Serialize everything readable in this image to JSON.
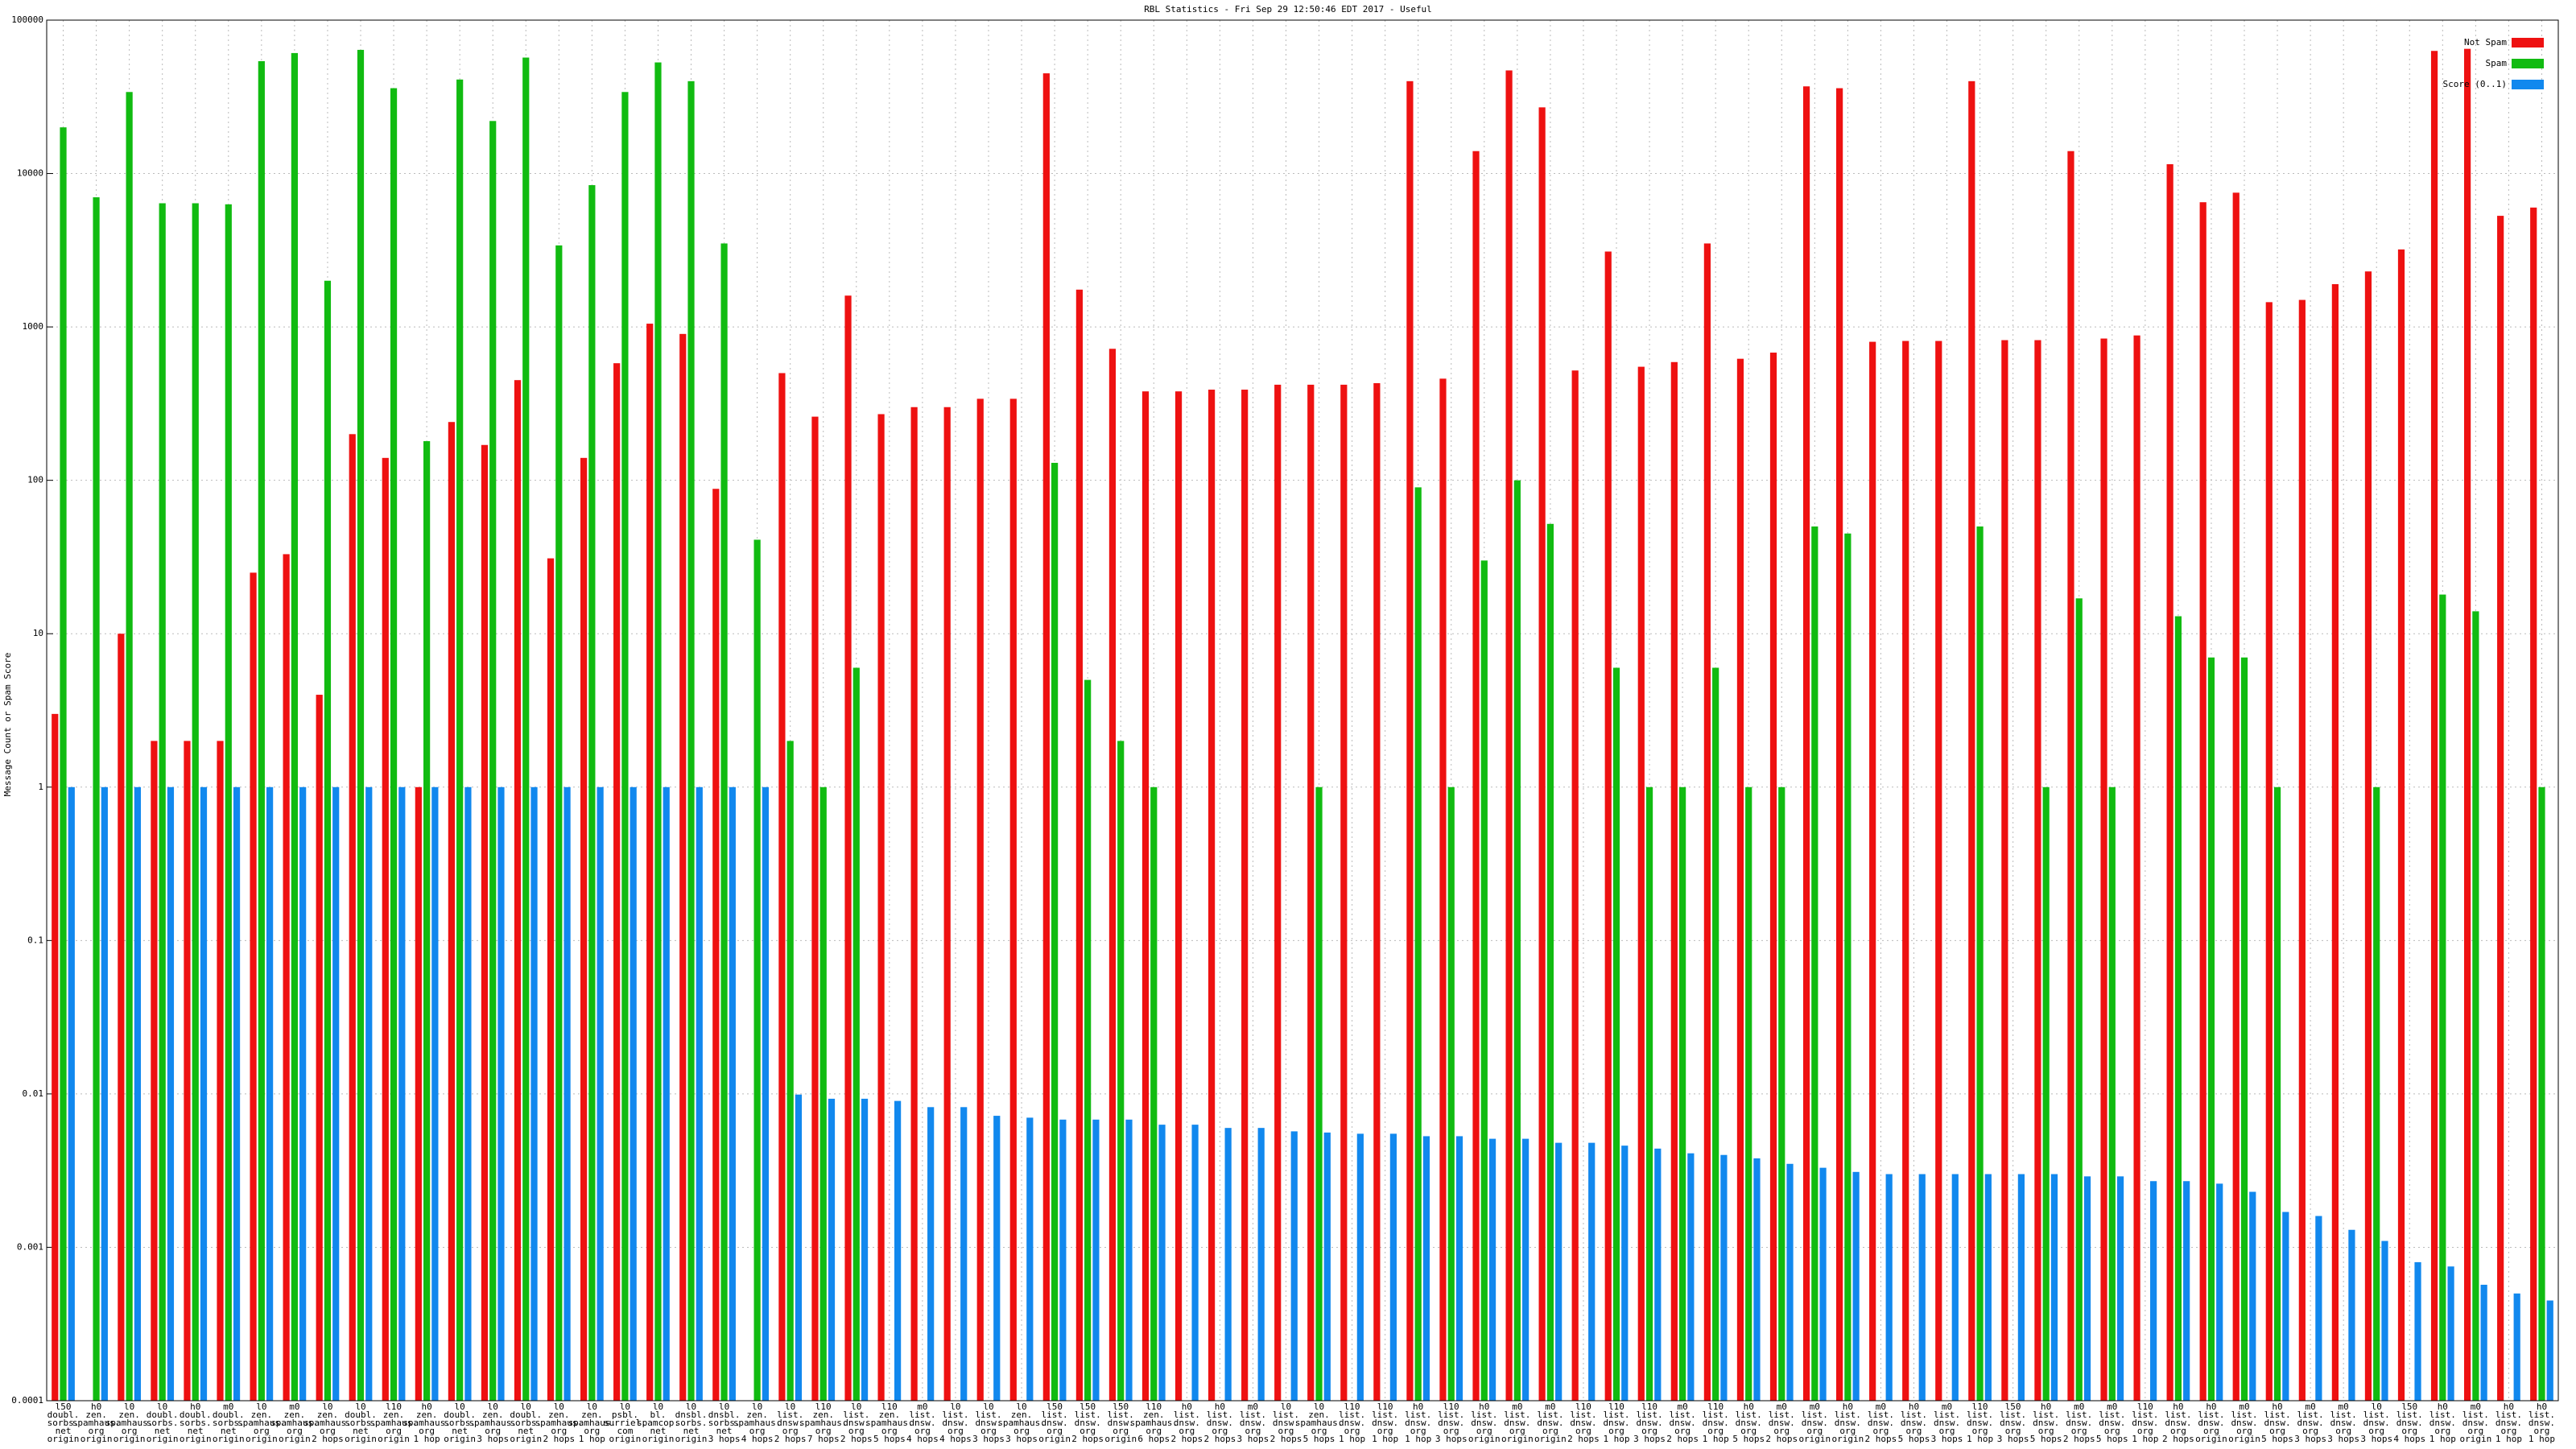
{
  "chart_data": {
    "type": "bar",
    "title": "RBL Statistics - Fri Sep 29 12:50:46 EDT 2017 - Useful",
    "y_label": "Message Count or Spam Score",
    "log_scale": true,
    "grid": true,
    "legend": "top-right",
    "ylim": [
      0.0001,
      100000
    ],
    "yticks": [
      0.0001,
      0.001,
      0.01,
      0.1,
      1,
      10,
      100,
      1000,
      10000,
      100000
    ],
    "categories": [
      [
        "l50",
        "doubl.",
        "sorbs.",
        "net",
        "origin"
      ],
      [
        "h0",
        "zen.",
        "spamhaus.",
        "org",
        "origin"
      ],
      [
        "l0",
        "zen.",
        "spamhaus.",
        "org",
        "origin"
      ],
      [
        "l0",
        "doubl.",
        "sorbs.",
        "net",
        "origin"
      ],
      [
        "h0",
        "doubl.",
        "sorbs.",
        "net",
        "origin"
      ],
      [
        "m0",
        "doubl.",
        "sorbs.",
        "net",
        "origin"
      ],
      [
        "l0",
        "zen.",
        "spamhaus.",
        "org",
        "origin"
      ],
      [
        "m0",
        "zen.",
        "spamhaus.",
        "org",
        "origin"
      ],
      [
        "l0",
        "zen.",
        "spamhaus.",
        "org",
        "2 hops"
      ],
      [
        "l0",
        "doubl.",
        "sorbs.",
        "net",
        "origin"
      ],
      [
        "l10",
        "zen.",
        "spamhaus.",
        "org",
        "origin"
      ],
      [
        "h0",
        "zen.",
        "spamhaus.",
        "org",
        "1 hop"
      ],
      [
        "l0",
        "doubl.",
        "sorbs.",
        "net",
        "origin"
      ],
      [
        "l0",
        "zen.",
        "spamhaus.",
        "org",
        "3 hops"
      ],
      [
        "l0",
        "doubl.",
        "sorbs.",
        "net",
        "origin"
      ],
      [
        "l0",
        "zen.",
        "spamhaus.",
        "org",
        "2 hops"
      ],
      [
        "l0",
        "zen.",
        "spamhaus.",
        "org",
        "1 hop"
      ],
      [
        "l0",
        "psbl.",
        "surriel.",
        "com",
        "origin"
      ],
      [
        "l0",
        "bl.",
        "spamcop.",
        "net",
        "origin"
      ],
      [
        "l0",
        "dnsbl.",
        "sorbs.",
        "net",
        "origin"
      ],
      [
        "l0",
        "dnsbl.",
        "sorbs.",
        "net",
        "3 hops"
      ],
      [
        "l0",
        "zen.",
        "spamhaus.",
        "org",
        "4 hops"
      ],
      [
        "l0",
        "list.",
        "dnsw.",
        "org",
        "2 hops"
      ],
      [
        "l10",
        "zen.",
        "spamhaus.",
        "org",
        "7 hops"
      ],
      [
        "l0",
        "list.",
        "dnsw.",
        "org",
        "2 hops"
      ],
      [
        "l10",
        "zen.",
        "spamhaus.",
        "org",
        "5 hops"
      ],
      [
        "m0",
        "list.",
        "dnsw.",
        "org",
        "4 hops"
      ],
      [
        "l0",
        "list.",
        "dnsw.",
        "org",
        "4 hops"
      ],
      [
        "l0",
        "list.",
        "dnsw.",
        "org",
        "3 hops"
      ],
      [
        "l0",
        "zen.",
        "spamhaus.",
        "org",
        "3 hops"
      ],
      [
        "l50",
        "list.",
        "dnsw.",
        "org",
        "origin"
      ],
      [
        "l50",
        "list.",
        "dnsw.",
        "org",
        "2 hops"
      ],
      [
        "l50",
        "list.",
        "dnsw.",
        "org",
        "origin"
      ],
      [
        "l10",
        "zen.",
        "spamhaus.",
        "org",
        "6 hops"
      ],
      [
        "h0",
        "list.",
        "dnsw.",
        "org",
        "2 hops"
      ],
      [
        "h0",
        "list.",
        "dnsw.",
        "org",
        "2 hops"
      ],
      [
        "m0",
        "list.",
        "dnsw.",
        "org",
        "3 hops"
      ],
      [
        "l0",
        "list.",
        "dnsw.",
        "org",
        "2 hops"
      ],
      [
        "l0",
        "zen.",
        "spamhaus.",
        "org",
        "5 hops"
      ],
      [
        "l10",
        "list.",
        "dnsw.",
        "org",
        "1 hop"
      ],
      [
        "l10",
        "list.",
        "dnsw.",
        "org",
        "1 hop"
      ],
      [
        "h0",
        "list.",
        "dnsw.",
        "org",
        "1 hop"
      ],
      [
        "l10",
        "list.",
        "dnsw.",
        "org",
        "3 hops"
      ],
      [
        "h0",
        "list.",
        "dnsw.",
        "org",
        "origin"
      ],
      [
        "m0",
        "list.",
        "dnsw.",
        "org",
        "origin"
      ],
      [
        "m0",
        "list.",
        "dnsw.",
        "org",
        "origin"
      ],
      [
        "l10",
        "list.",
        "dnsw.",
        "org",
        "2 hops"
      ],
      [
        "l10",
        "list.",
        "dnsw.",
        "org",
        "1 hop"
      ],
      [
        "l10",
        "list.",
        "dnsw.",
        "org",
        "3 hops"
      ],
      [
        "m0",
        "list.",
        "dnsw.",
        "org",
        "2 hops"
      ],
      [
        "l10",
        "list.",
        "dnsw.",
        "org",
        "1 hop"
      ],
      [
        "h0",
        "list.",
        "dnsw.",
        "org",
        "5 hops"
      ],
      [
        "m0",
        "list.",
        "dnsw.",
        "org",
        "2 hops"
      ],
      [
        "m0",
        "list.",
        "dnsw.",
        "org",
        "origin"
      ],
      [
        "h0",
        "list.",
        "dnsw.",
        "org",
        "origin"
      ],
      [
        "m0",
        "list.",
        "dnsw.",
        "org",
        "2 hops"
      ],
      [
        "h0",
        "list.",
        "dnsw.",
        "org",
        "5 hops"
      ],
      [
        "m0",
        "list.",
        "dnsw.",
        "org",
        "3 hops"
      ],
      [
        "l10",
        "list.",
        "dnsw.",
        "org",
        "1 hop"
      ],
      [
        "l50",
        "list.",
        "dnsw.",
        "org",
        "3 hops"
      ],
      [
        "h0",
        "list.",
        "dnsw.",
        "org",
        "5 hops"
      ],
      [
        "m0",
        "list.",
        "dnsw.",
        "org",
        "2 hops"
      ],
      [
        "m0",
        "list.",
        "dnsw.",
        "org",
        "5 hops"
      ],
      [
        "l10",
        "list.",
        "dnsw.",
        "org",
        "1 hop"
      ],
      [
        "h0",
        "list.",
        "dnsw.",
        "org",
        "2 hops"
      ],
      [
        "h0",
        "list.",
        "dnsw.",
        "org",
        "origin"
      ],
      [
        "m0",
        "list.",
        "dnsw.",
        "org",
        "origin"
      ],
      [
        "h0",
        "list.",
        "dnsw.",
        "org",
        "5 hops"
      ],
      [
        "m0",
        "list.",
        "dnsw.",
        "org",
        "3 hops"
      ],
      [
        "m0",
        "list.",
        "dnsw.",
        "org",
        "3 hops"
      ],
      [
        "l0",
        "list.",
        "dnsw.",
        "org",
        "3 hops"
      ],
      [
        "l50",
        "list.",
        "dnsw.",
        "org",
        "4 hops"
      ],
      [
        "h0",
        "list.",
        "dnsw.",
        "org",
        "1 hop"
      ],
      [
        "m0",
        "list.",
        "dnsw.",
        "org",
        "origin"
      ],
      [
        "h0",
        "list.",
        "dnsw.",
        "org",
        "1 hop"
      ],
      [
        "h0",
        "list.",
        "dnsw.",
        "org",
        "1 hop"
      ]
    ],
    "series": [
      {
        "name": "Not Spam",
        "color": "#ee1111",
        "values": [
          3,
          null,
          10,
          2,
          2,
          2,
          25,
          33,
          4,
          200,
          140,
          1,
          240,
          170,
          450,
          31,
          140,
          580,
          1050,
          900,
          88,
          null,
          500,
          260,
          1600,
          270,
          300,
          300,
          340,
          340,
          45000,
          1750,
          720,
          380,
          380,
          390,
          390,
          420,
          420,
          420,
          430,
          40000,
          460,
          14000,
          47000,
          27000,
          520,
          3100,
          550,
          590,
          3500,
          620,
          680,
          37000,
          36000,
          800,
          810,
          810,
          40000,
          820,
          820,
          14000,
          840,
          880,
          11500,
          6500,
          7500,
          1450,
          1500,
          1900,
          2300,
          3200,
          63000,
          65000,
          5300,
          6000
        ]
      },
      {
        "name": "Spam",
        "color": "#11bb11",
        "values": [
          20000,
          7000,
          34000,
          6400,
          6400,
          6300,
          54000,
          61000,
          2000,
          64000,
          36000,
          180,
          41000,
          22000,
          57000,
          3400,
          8400,
          34000,
          53000,
          40000,
          3500,
          41,
          2,
          1,
          6,
          null,
          null,
          null,
          null,
          null,
          130,
          5,
          2,
          1,
          null,
          null,
          null,
          null,
          1,
          null,
          null,
          90,
          1,
          30,
          100,
          52,
          null,
          6,
          1,
          1,
          6,
          1,
          1,
          50,
          45,
          null,
          null,
          null,
          50,
          null,
          1,
          17,
          1,
          null,
          13,
          7,
          7,
          1,
          null,
          null,
          1,
          null,
          18,
          14,
          null,
          1
        ]
      },
      {
        "name": "Score (0..1)",
        "color": "#1188ee",
        "values": [
          1,
          1,
          1,
          1,
          1,
          1,
          1,
          1,
          1,
          1,
          1,
          1,
          1,
          1,
          1,
          1,
          1,
          1,
          1,
          1,
          1,
          1,
          0.0099,
          0.0093,
          0.0093,
          0.009,
          0.0082,
          0.0082,
          0.0072,
          0.007,
          0.0068,
          0.0068,
          0.0068,
          0.0063,
          0.0063,
          0.006,
          0.006,
          0.0057,
          0.0056,
          0.0055,
          0.0055,
          0.0053,
          0.0053,
          0.0051,
          0.0051,
          0.0048,
          0.0048,
          0.0046,
          0.0044,
          0.0041,
          0.004,
          0.0038,
          0.0035,
          0.0033,
          0.0031,
          0.003,
          0.003,
          0.003,
          0.003,
          0.003,
          0.003,
          0.0029,
          0.0029,
          0.0027,
          0.0027,
          0.0026,
          0.0023,
          0.0017,
          0.0016,
          0.0013,
          0.0011,
          0.0008,
          0.00075,
          0.00057,
          0.0005,
          0.00045
        ]
      }
    ]
  }
}
